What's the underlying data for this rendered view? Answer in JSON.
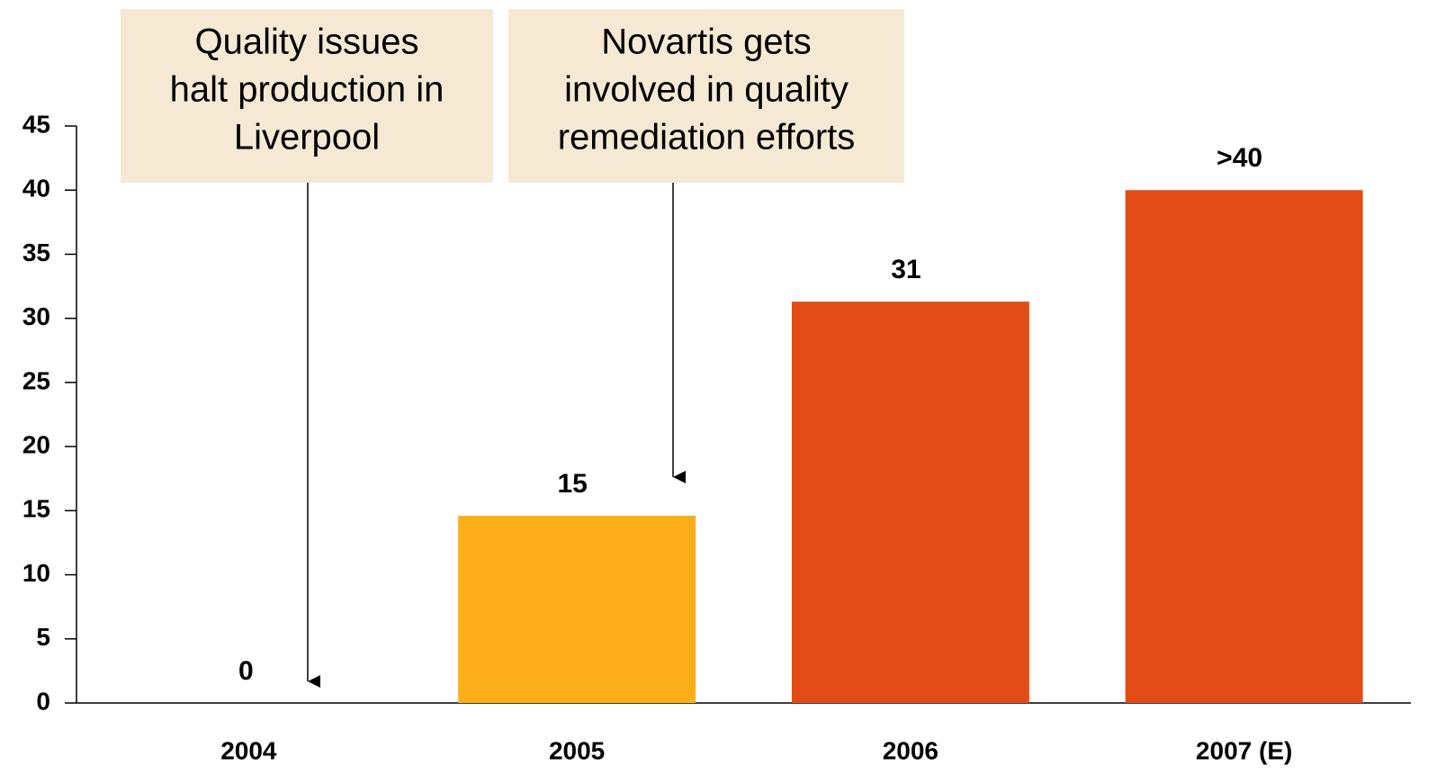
{
  "chart_data": {
    "type": "bar",
    "categories": [
      "2004",
      "2005",
      "2006",
      "2007 (E)"
    ],
    "values": [
      0,
      14.6,
      31.3,
      40
    ],
    "value_labels": [
      "0",
      "15",
      "31",
      ">40"
    ],
    "colors": [
      "#e34c16",
      "#fbae17",
      "#e34c16",
      "#e34c16"
    ],
    "ylim": [
      0,
      45
    ],
    "yticks": [
      0,
      5,
      10,
      15,
      20,
      25,
      30,
      35,
      40,
      45
    ],
    "grid": false,
    "annotations": [
      {
        "lines": [
          "Quality issues",
          "halt production in",
          "Liverpool"
        ]
      },
      {
        "lines": [
          "Novartis gets",
          "involved in quality",
          "remediation efforts"
        ]
      }
    ]
  }
}
